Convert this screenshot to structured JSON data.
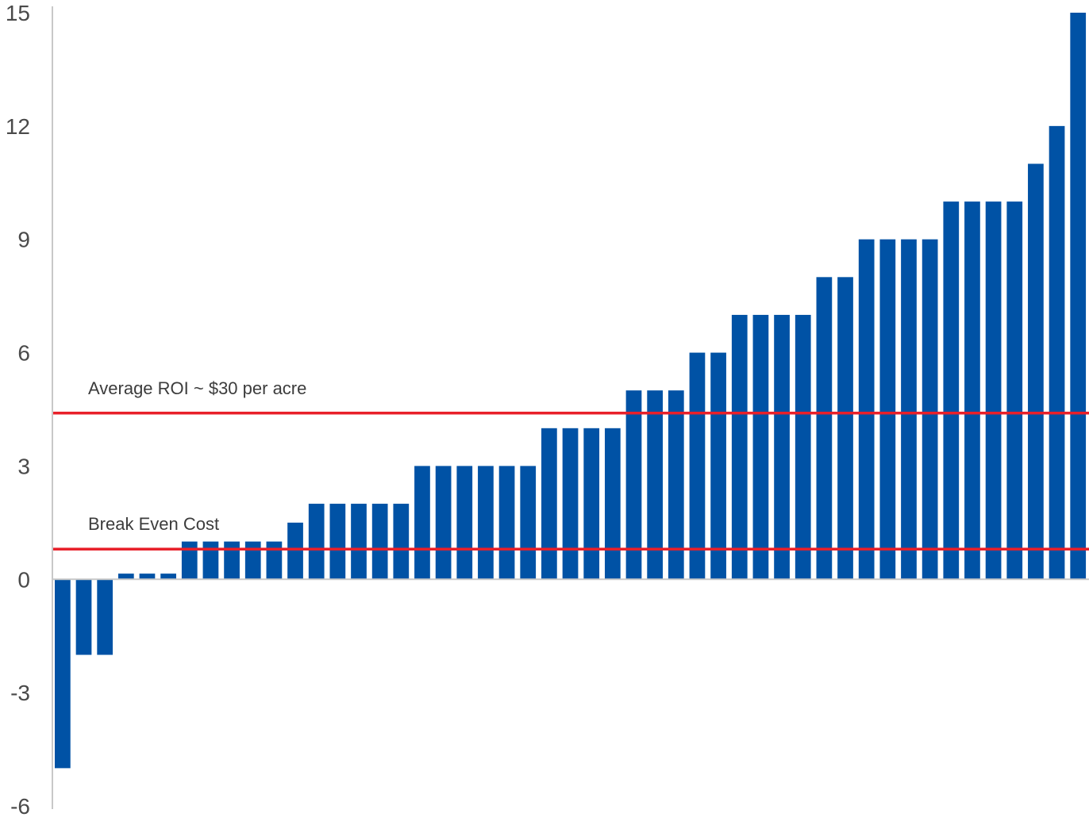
{
  "chart_data": {
    "type": "bar",
    "title": "",
    "xlabel": "",
    "ylabel": "",
    "ylim": [
      -6,
      15
    ],
    "yticks": [
      15,
      12,
      9,
      6,
      3,
      0,
      -3,
      -6
    ],
    "ytick_labels": [
      "15",
      "12",
      "9",
      "6",
      "3",
      "0",
      "-3",
      "-6"
    ],
    "grid": false,
    "legend": "none",
    "bar_color": "#0052a5",
    "values": [
      -5,
      -2,
      -2,
      0.15,
      0.15,
      0.15,
      1,
      1,
      1,
      1,
      1,
      1.5,
      2,
      2,
      2,
      2,
      2,
      3,
      3,
      3,
      3,
      3,
      3,
      4,
      4,
      4,
      4,
      5,
      5,
      5,
      6,
      6,
      7,
      7,
      7,
      7,
      8,
      8,
      9,
      9,
      9,
      9,
      10,
      10,
      10,
      10,
      11,
      12,
      15
    ],
    "reference_lines": [
      {
        "label": "Average ROI ~ $30 per acre",
        "value": 4.4,
        "color": "#e8202a"
      },
      {
        "label": "Break Even Cost",
        "value": 0.8,
        "color": "#e8202a"
      }
    ]
  }
}
